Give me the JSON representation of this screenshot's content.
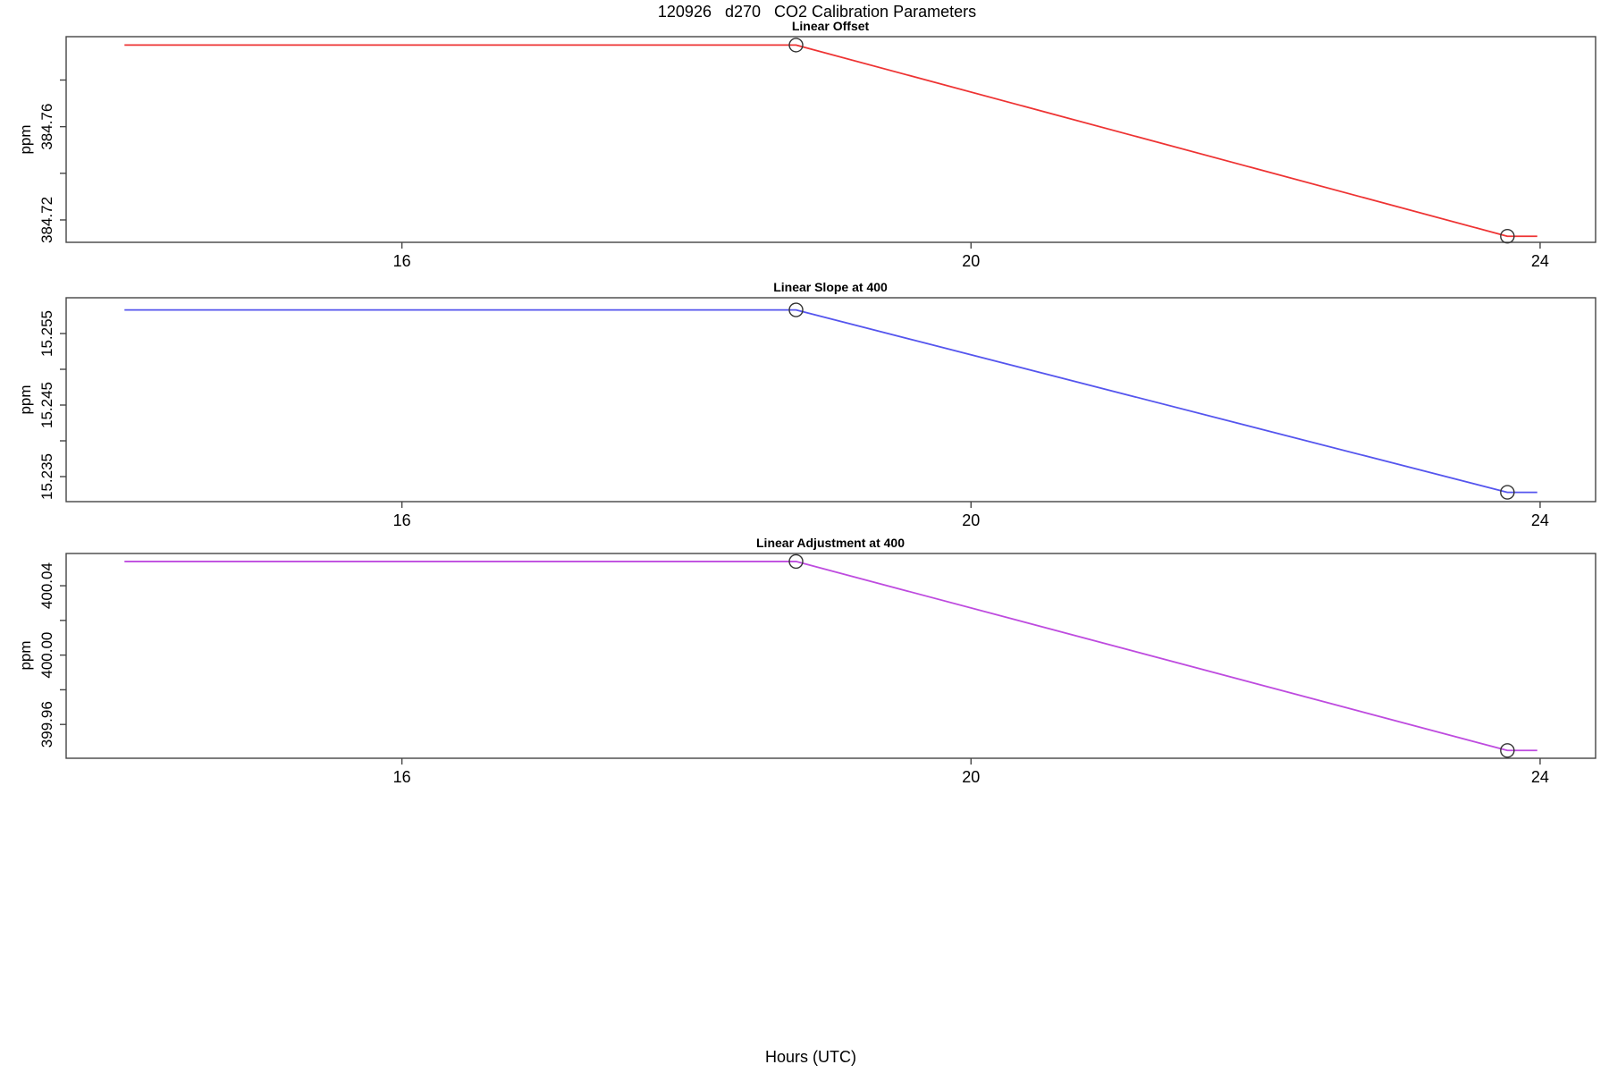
{
  "figure": {
    "title": "120926   d270   CO2 Calibration Parameters",
    "xlabel": "Hours (UTC)"
  },
  "chart_data": [
    {
      "type": "line",
      "title": "Linear Offset",
      "ylabel": "ppm",
      "line_color": "#ee3333",
      "marker_color": "#333333",
      "xlim": [
        13.64,
        24.39
      ],
      "ylim": [
        384.7104,
        384.7986
      ],
      "xticks": [
        {
          "v": 16,
          "label": "16"
        },
        {
          "v": 20,
          "label": "20"
        },
        {
          "v": 24,
          "label": "24"
        }
      ],
      "yticks": [
        {
          "v": 384.78
        },
        {
          "v": 384.76,
          "label": "384.76"
        },
        {
          "v": 384.74
        },
        {
          "v": 384.72,
          "label": "384.72"
        }
      ],
      "points": [
        {
          "x": 14.05,
          "y": 384.795
        },
        {
          "x": 18.77,
          "y": 384.795,
          "marker": true
        },
        {
          "x": 23.77,
          "y": 384.713,
          "marker": true
        },
        {
          "x": 23.98,
          "y": 384.713
        }
      ]
    },
    {
      "type": "line",
      "title": "Linear Slope at 400",
      "ylabel": "ppm",
      "line_color": "#5555ee",
      "marker_color": "#333333",
      "xlim": [
        13.64,
        24.39
      ],
      "ylim": [
        15.2315,
        15.26
      ],
      "xticks": [
        {
          "v": 16,
          "label": "16"
        },
        {
          "v": 20,
          "label": "20"
        },
        {
          "v": 24,
          "label": "24"
        }
      ],
      "yticks": [
        {
          "v": 15.255,
          "label": "15.255"
        },
        {
          "v": 15.25
        },
        {
          "v": 15.245,
          "label": "15.245"
        },
        {
          "v": 15.24
        },
        {
          "v": 15.235,
          "label": "15.235"
        }
      ],
      "points": [
        {
          "x": 14.05,
          "y": 15.2583
        },
        {
          "x": 18.77,
          "y": 15.2583,
          "marker": true
        },
        {
          "x": 23.77,
          "y": 15.2328,
          "marker": true
        },
        {
          "x": 23.98,
          "y": 15.2328
        }
      ]
    },
    {
      "type": "line",
      "title": "Linear Adjustment at 400",
      "ylabel": "ppm",
      "line_color": "#be4bdf",
      "marker_color": "#333333",
      "xlim": [
        13.64,
        24.39
      ],
      "ylim": [
        399.9405,
        400.0586
      ],
      "xticks": [
        {
          "v": 16,
          "label": "16"
        },
        {
          "v": 20,
          "label": "20"
        },
        {
          "v": 24,
          "label": "24"
        }
      ],
      "yticks": [
        {
          "v": 400.04,
          "label": "400.04"
        },
        {
          "v": 400.02
        },
        {
          "v": 400.0,
          "label": "400.00"
        },
        {
          "v": 399.98
        },
        {
          "v": 399.96,
          "label": "399.96"
        }
      ],
      "points": [
        {
          "x": 14.05,
          "y": 400.054
        },
        {
          "x": 18.77,
          "y": 400.054,
          "marker": true
        },
        {
          "x": 23.77,
          "y": 399.945,
          "marker": true
        },
        {
          "x": 23.98,
          "y": 399.945
        }
      ]
    }
  ]
}
